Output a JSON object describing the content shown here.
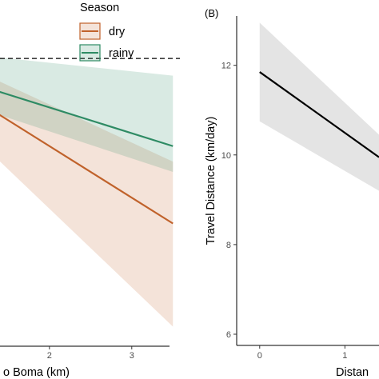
{
  "chart_data": [
    {
      "type": "line",
      "panel_label": "",
      "xlabel": "o Boma (km)",
      "ylabel": "",
      "x_ticks": [
        2,
        3
      ],
      "xlim": [
        0.7,
        3.75
      ],
      "ylim": [
        0.0,
        1.0
      ],
      "reference_line": {
        "y": 0.83,
        "style": "dashed"
      },
      "legend": {
        "title": "Season",
        "position": "top-right"
      },
      "series": [
        {
          "name": "dry",
          "color": "#c0622b",
          "x": [
            0.7,
            3.5
          ],
          "y": [
            0.77,
            0.35
          ],
          "band_upper": [
            0.84,
            0.53
          ],
          "band_lower": [
            0.69,
            0.05
          ]
        },
        {
          "name": "rainy",
          "color": "#2e8b64",
          "x": [
            0.7,
            3.5
          ],
          "y": [
            0.785,
            0.575
          ],
          "band_upper": [
            0.85,
            0.78
          ],
          "band_lower": [
            0.72,
            0.5
          ]
        }
      ]
    },
    {
      "type": "line",
      "panel_label": "(B)",
      "xlabel": "Distan",
      "ylabel": "Travel Distance (km/day)",
      "x_ticks": [
        0,
        1
      ],
      "y_ticks": [
        6,
        8,
        10,
        12
      ],
      "xlim": [
        -0.27,
        1.4
      ],
      "ylim": [
        5.75,
        13.1
      ],
      "series": [
        {
          "name": "",
          "color": "#000000",
          "x": [
            0,
            1.4
          ],
          "y": [
            11.85,
            9.95
          ],
          "band_upper": [
            12.95,
            10.45
          ],
          "band_lower": [
            10.75,
            9.2
          ]
        }
      ]
    }
  ]
}
